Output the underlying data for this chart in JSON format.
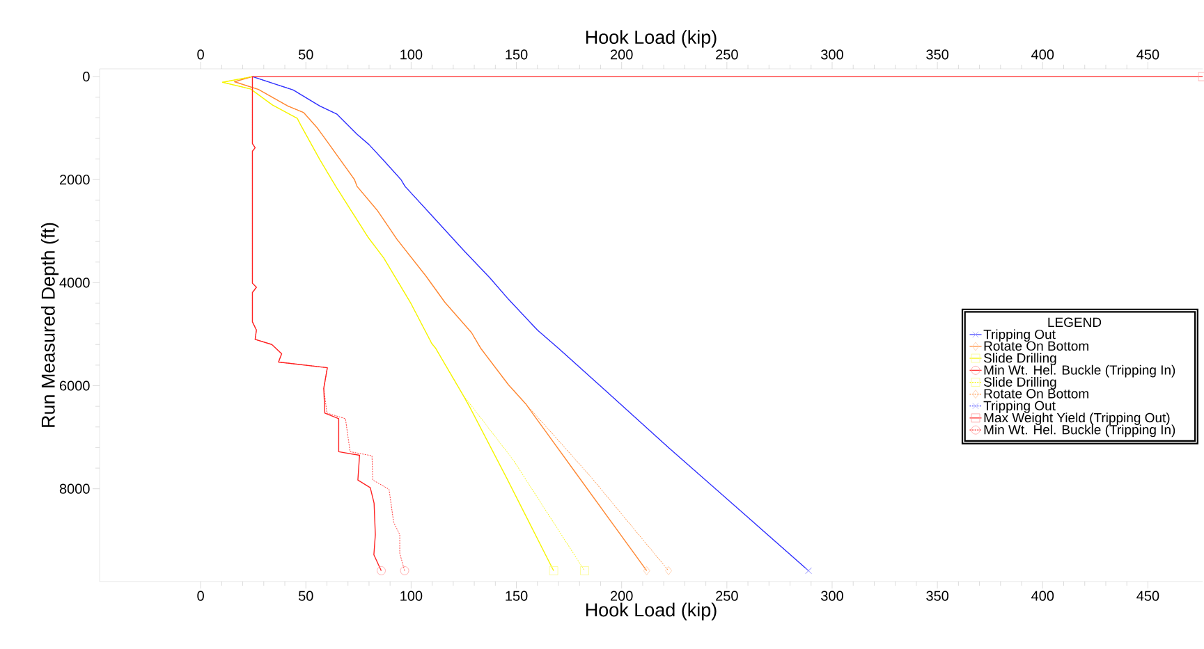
{
  "chart_data": {
    "type": "line",
    "xlabel": "Hook Load (kip)",
    "x2label": "Hook Load (kip)",
    "ylabel": "Run Measured Depth (ft)",
    "legend_title": "LEGEND",
    "legend": "right",
    "xlim": [
      -48,
      476
    ],
    "xticks": [
      0,
      50,
      100,
      150,
      200,
      250,
      300,
      350,
      400,
      450
    ],
    "x2lim": [
      -48,
      476
    ],
    "x2ticks": [
      0,
      50,
      100,
      150,
      200,
      250,
      300,
      350,
      400,
      450
    ],
    "ylim": [
      9800,
      -150
    ],
    "yticks": [
      0,
      2000,
      4000,
      6000,
      8000
    ],
    "series": [
      {
        "name": "Tripping Out",
        "color": "#3333ff",
        "line_style": "solid",
        "x": [
          24.6,
          44.0,
          56.6,
          64.8,
          74.3,
          80.0,
          87.0,
          95.2,
          97.1,
          111.0,
          124.9,
          137.5,
          146.2,
          160,
          169.9,
          192.8,
          222.3,
          261.8,
          288.8
        ],
        "values": [
          0,
          260,
          570,
          730,
          1120,
          1320,
          1630,
          2000,
          2130,
          2750,
          3370,
          3910,
          4320,
          4920,
          5270,
          6110,
          7200,
          8620,
          9590
        ]
      },
      {
        "name": "Rotate On Bottom",
        "color": "#ff8833",
        "line_style": "solid",
        "x": [
          24.6,
          16.1,
          27.5,
          41.4,
          49.0,
          55.3,
          61.7,
          73.1,
          74.3,
          83.8,
          93.3,
          107.2,
          116.0,
          128.7,
          133,
          146.2,
          154.4,
          178.0,
          211.9
        ],
        "values": [
          0,
          100,
          250,
          570,
          700,
          990,
          1350,
          2000,
          2130,
          2590,
          3160,
          3880,
          4380,
          4970,
          5270,
          5980,
          6350,
          7680,
          9590
        ]
      },
      {
        "name": "Slide Drilling",
        "color": "#f5f500",
        "line_style": "solid",
        "x": [
          24.6,
          10.4,
          23.7,
          34.1,
          45.9,
          47.8,
          56.6,
          64.2,
          79.4,
          87.0,
          99.6,
          109.8,
          111.6,
          124.5,
          127.8,
          145.5,
          167.7
        ],
        "values": [
          0,
          110,
          240,
          550,
          810,
          960,
          1610,
          2130,
          3110,
          3520,
          4380,
          5180,
          5270,
          6170,
          6410,
          7800,
          9590
        ]
      },
      {
        "name": "Min Wt. Hel. Buckle (Tripping In)",
        "color": "#ff2222",
        "line_style": "solid",
        "x": [
          24.6,
          24.6,
          25.9,
          24.6,
          24.6,
          26.5,
          24.6,
          24.6,
          26.5,
          25.9,
          33.8,
          38.5,
          37.0,
          60.2,
          58.5,
          59.0,
          65.6,
          65.6,
          75.5,
          74.7,
          80.6,
          82.4,
          83.0,
          82.3,
          85.8
        ],
        "values": [
          0,
          1300,
          1380,
          1450,
          4010,
          4090,
          4190,
          4760,
          4920,
          5100,
          5200,
          5380,
          5540,
          5650,
          6050,
          6530,
          6640,
          7280,
          7350,
          7830,
          7980,
          8280,
          8890,
          9280,
          9590
        ]
      },
      {
        "name": "Slide Drilling",
        "color": "#f5f500",
        "line_style": "dashed",
        "x": [
          24.6,
          10.4,
          23.7,
          34.1,
          45.9,
          47.8,
          56.6,
          64.2,
          79.4,
          87.0,
          99.6,
          109.8,
          111.6,
          124.5,
          148.5,
          182.4
        ],
        "values": [
          0,
          110,
          240,
          550,
          810,
          960,
          1610,
          2130,
          3110,
          3520,
          4380,
          5180,
          5270,
          6170,
          7440,
          9590
        ]
      },
      {
        "name": "Rotate On Bottom",
        "color": "#ff8833",
        "line_style": "dashed",
        "x": [
          24.6,
          16.1,
          27.5,
          41.4,
          49.0,
          55.3,
          61.7,
          73.1,
          74.3,
          83.8,
          93.3,
          107.2,
          116.0,
          128.7,
          133,
          146.2,
          150.5,
          185.4,
          222.3
        ],
        "values": [
          0,
          100,
          250,
          570,
          700,
          990,
          1350,
          2000,
          2130,
          2590,
          3160,
          3880,
          4380,
          4970,
          5270,
          5980,
          6170,
          7770,
          9590
        ]
      },
      {
        "name": "Tripping Out",
        "color": "#3333ff",
        "line_style": "dashed",
        "x": [
          24.6,
          44.0,
          56.6,
          64.8,
          74.3,
          80.0,
          87.0,
          95.2,
          97.1,
          111.0,
          124.9,
          137.5,
          146.2,
          160,
          169.9,
          192.8,
          222.3,
          261.8,
          288.8
        ],
        "values": [
          0,
          260,
          570,
          730,
          1120,
          1320,
          1630,
          2000,
          2130,
          2750,
          3370,
          3910,
          4320,
          4920,
          5270,
          6110,
          7200,
          8620,
          9590
        ]
      },
      {
        "name": "Max Weight Yield (Tripping Out)",
        "color": "#ff2222",
        "line_style": "solid",
        "x": [
          24.6,
          476
        ],
        "values": [
          0,
          0
        ]
      },
      {
        "name": "Min Wt. Hel. Buckle (Tripping In)",
        "color": "#ff2222",
        "line_style": "dashed",
        "x": [
          24.6,
          24.6,
          25.9,
          24.6,
          24.6,
          26.5,
          24.6,
          24.6,
          26.5,
          25.9,
          33.8,
          38.5,
          37.0,
          60.2,
          58.5,
          60.0,
          68.8,
          71.0,
          81.4,
          81.8,
          89.5,
          91.7,
          94.6,
          94.6,
          96.9
        ],
        "values": [
          0,
          1300,
          1380,
          1450,
          4010,
          4090,
          4190,
          4760,
          4920,
          5100,
          5200,
          5380,
          5540,
          5650,
          6050,
          6530,
          6640,
          7280,
          7360,
          7830,
          8010,
          8650,
          8890,
          9250,
          9590
        ]
      },
      {
        "type": "scatter",
        "color": "#a3a3ff",
        "marker": "cross",
        "x": [
          288.8
        ],
        "values": [
          9590
        ]
      },
      {
        "type": "scatter",
        "color": "#ffc9a3",
        "marker": "diamond",
        "x": [
          211.9
        ],
        "values": [
          9590
        ]
      },
      {
        "type": "scatter",
        "color": "#fafa8c",
        "marker": "square",
        "x": [
          167.7
        ],
        "values": [
          9590
        ]
      },
      {
        "type": "scatter",
        "color": "#ff9c9c",
        "marker": "circle",
        "x": [
          85.8
        ],
        "values": [
          9590
        ]
      },
      {
        "type": "scatter",
        "color": "#fafa8c",
        "marker": "square",
        "x": [
          182.4
        ],
        "values": [
          9590
        ]
      },
      {
        "type": "scatter",
        "color": "#ffc9a3",
        "marker": "diamond",
        "x": [
          222.3
        ],
        "values": [
          9590
        ]
      },
      {
        "type": "scatter",
        "color": "#a3a3ff",
        "marker": "cross",
        "x": [
          288.8
        ],
        "values": [
          9590
        ]
      },
      {
        "type": "scatter",
        "color": "#ff9c9c",
        "marker": "square",
        "x": [
          476
        ],
        "values": [
          0
        ]
      },
      {
        "type": "scatter",
        "color": "#ff9c9c",
        "marker": "circle",
        "x": [
          96.9
        ],
        "values": [
          9590
        ]
      }
    ]
  }
}
